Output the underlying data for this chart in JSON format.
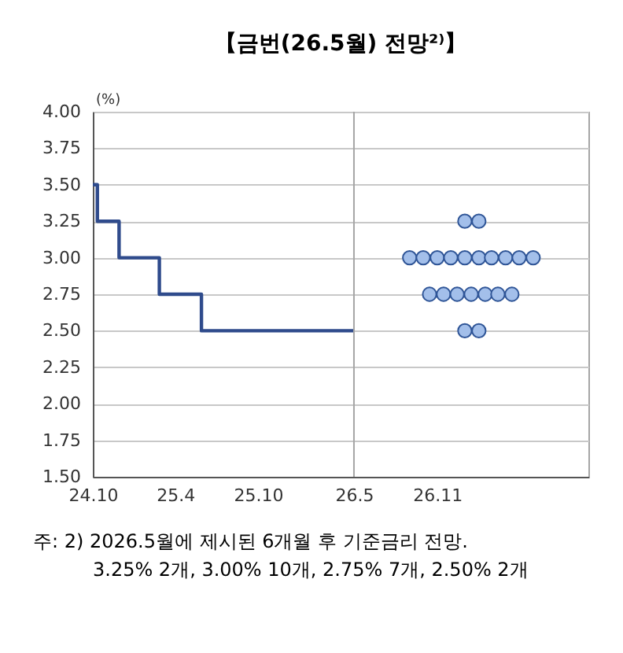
{
  "chart_data": {
    "type": "line",
    "title": "【금번(26.5월) 전망²⁾】",
    "ylabel": "(%)",
    "xlim": [
      "2024-10-01",
      "2027-10-01"
    ],
    "xticks": [
      {
        "value": "2024-10-01",
        "label": "24.10"
      },
      {
        "value": "2025-04-01",
        "label": "25.4"
      },
      {
        "value": "2025-10-01",
        "label": "25.10"
      },
      {
        "value": "2026-05-01",
        "label": "26.5"
      },
      {
        "value": "2026-11-01",
        "label": "26.11"
      }
    ],
    "ylim": [
      1.5,
      4.0
    ],
    "yticks": [
      {
        "value": 1.5,
        "label": "1.50"
      },
      {
        "value": 1.75,
        "label": "1.75"
      },
      {
        "value": 2.0,
        "label": "2.00"
      },
      {
        "value": 2.25,
        "label": "2.25"
      },
      {
        "value": 2.5,
        "label": "2.50"
      },
      {
        "value": 2.75,
        "label": "2.75"
      },
      {
        "value": 3.0,
        "label": "3.00"
      },
      {
        "value": 3.25,
        "label": "3.25"
      },
      {
        "value": 3.5,
        "label": "3.50"
      },
      {
        "value": 3.75,
        "label": "3.75"
      },
      {
        "value": 4.0,
        "label": "4.00"
      }
    ],
    "grid": "y",
    "legend": false,
    "ref_lines": [
      {
        "axis": "x",
        "value": "2026-05-01",
        "color": "#a6a6a6"
      }
    ],
    "series": [
      {
        "type": "step",
        "color": "#2f4b8c",
        "x": [
          "2024-10-01",
          "2024-10-11",
          "2024-11-28",
          "2025-02-25",
          "2025-05-29",
          "2026-05-01"
        ],
        "values": [
          3.5,
          3.25,
          3.0,
          2.75,
          2.5,
          2.5
        ]
      },
      {
        "type": "scatter",
        "marker": "circle",
        "color": "#a3bfea",
        "x": [
          "2027-01-01",
          "2027-02-01",
          "2026-09-01",
          "2026-10-01",
          "2026-11-01",
          "2026-12-01",
          "2027-01-01",
          "2027-02-01",
          "2027-03-01",
          "2027-04-01",
          "2027-05-01",
          "2027-06-01",
          "2026-10-15",
          "2026-11-15",
          "2026-12-15",
          "2027-01-15",
          "2027-02-15",
          "2027-03-15",
          "2027-04-15",
          "2027-01-01",
          "2027-02-01"
        ],
        "values": [
          3.25,
          3.25,
          3.0,
          3.0,
          3.0,
          3.0,
          3.0,
          3.0,
          3.0,
          3.0,
          3.0,
          3.0,
          2.75,
          2.75,
          2.75,
          2.75,
          2.75,
          2.75,
          2.75,
          2.5,
          2.5
        ]
      }
    ],
    "annotations": [
      "주: 2) 2026.5월에 제시된 6개월 후 기준금리 전망.",
      "3.25% 2개, 3.00% 10개, 2.75% 7개, 2.50% 2개"
    ]
  }
}
